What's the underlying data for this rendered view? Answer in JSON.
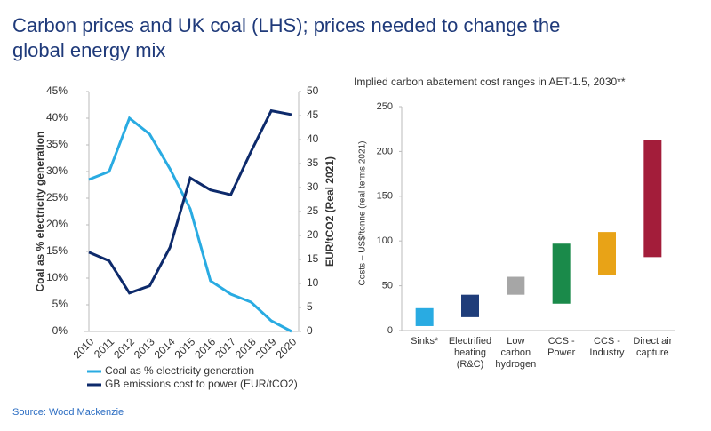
{
  "title": "Carbon prices and UK coal (LHS); prices needed to change the global energy mix",
  "source": "Source: Wood Mackenzie",
  "chart_data": [
    {
      "type": "line",
      "x": [
        2010,
        2011,
        2012,
        2013,
        2014,
        2015,
        2016,
        2017,
        2018,
        2019,
        2020
      ],
      "xlim": [
        2010,
        2020
      ],
      "ylabel": "Coal as % electricity generation",
      "y2label": "EUR/tCO2 (Real 2021)",
      "ylim": [
        0,
        45
      ],
      "yticks": [
        {
          "value": 0,
          "label": "0%"
        },
        {
          "value": 5,
          "label": "5%"
        },
        {
          "value": 10,
          "label": "10%"
        },
        {
          "value": 15,
          "label": "15%"
        },
        {
          "value": 20,
          "label": "20%"
        },
        {
          "value": 25,
          "label": "25%"
        },
        {
          "value": 30,
          "label": "30%"
        },
        {
          "value": 35,
          "label": "35%"
        },
        {
          "value": 40,
          "label": "40%"
        },
        {
          "value": 45,
          "label": "45%"
        }
      ],
      "y2lim": [
        0,
        50
      ],
      "y2ticks": [
        0,
        5,
        10,
        15,
        20,
        25,
        30,
        35,
        40,
        45,
        50
      ],
      "series": [
        {
          "name": "Coal as % electricity generation",
          "color": "#29abe2",
          "values": [
            28.5,
            30,
            40,
            37,
            30.5,
            23,
            9.5,
            7,
            5.5,
            2,
            0
          ]
        },
        {
          "name": "GB emissions cost to power (EUR/tCO2)",
          "color": "#0d2a6b",
          "axis": "y2",
          "values": [
            16.5,
            14.7,
            8,
            9.5,
            17.5,
            32,
            29.5,
            28.5,
            37.5,
            46,
            45.2
          ]
        }
      ]
    },
    {
      "type": "range_bar",
      "title": "Implied carbon abatement cost ranges in AET-1.5, 2030**",
      "ylabel": "Costs – US$/tonne (real terms 2021)",
      "categories": [
        [
          "Sinks*"
        ],
        [
          "Electrified",
          "heating",
          "(R&C)"
        ],
        [
          "Low",
          "carbon",
          "hydrogen"
        ],
        [
          "CCS -",
          "Power"
        ],
        [
          "CCS -",
          "Industry"
        ],
        [
          "Direct air",
          "capture"
        ]
      ],
      "low": [
        5,
        15,
        40,
        30,
        62,
        82
      ],
      "high": [
        25,
        40,
        60,
        97,
        110,
        213
      ],
      "colors": [
        "#29abe2",
        "#1f3d7a",
        "#a6a6a6",
        "#1a8a4a",
        "#e8a317",
        "#a31d3a"
      ],
      "ylim": [
        0,
        250
      ],
      "yticks": [
        0,
        50,
        100,
        150,
        200,
        250
      ]
    }
  ]
}
